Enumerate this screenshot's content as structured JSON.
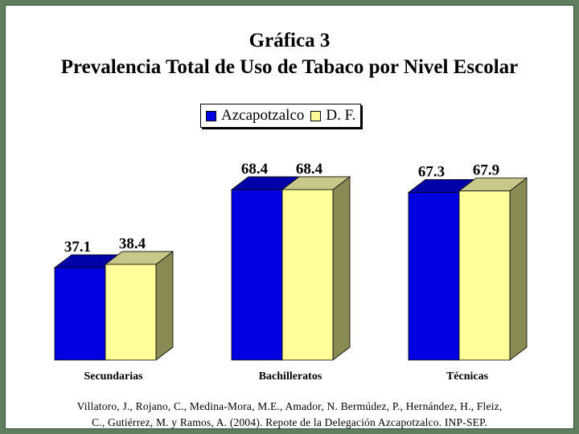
{
  "title_line1": "Gráfica 3",
  "title_line2": "Prevalencia Total de Uso de Tabaco por Nivel Escolar",
  "source_line1": "Villatoro, J., Rojano, C., Medina-Mora, M.E., Amador, N. Bermúdez, P., Hernández, H., Fleiz,",
  "source_line2": "C., Gutiérrez, M. y Ramos, A. (2004). Repote de la Delegación Azcapotzalco. INP-SEP.",
  "colors": {
    "frame": "#5f7f5f",
    "series1_front": "#0000e0",
    "series1_top": "#0000a8",
    "series2_front": "#ffff99",
    "series2_top": "#c8c88a",
    "series2_side": "#8a8a55"
  },
  "chart_data": {
    "type": "bar",
    "categories": [
      "Secundarias",
      "Bachilleratos",
      "Técnicas"
    ],
    "series": [
      {
        "name": "Azcapotzalco",
        "values": [
          37.1,
          68.4,
          67.3
        ]
      },
      {
        "name": "D. F.",
        "values": [
          38.4,
          68.4,
          67.9
        ]
      }
    ],
    "data_labels": [
      [
        "37.1",
        "68.4",
        "67.3"
      ],
      [
        "38.4",
        "68.4",
        "67.9"
      ]
    ],
    "style": "3d",
    "legend": "top-center",
    "grid": false
  }
}
